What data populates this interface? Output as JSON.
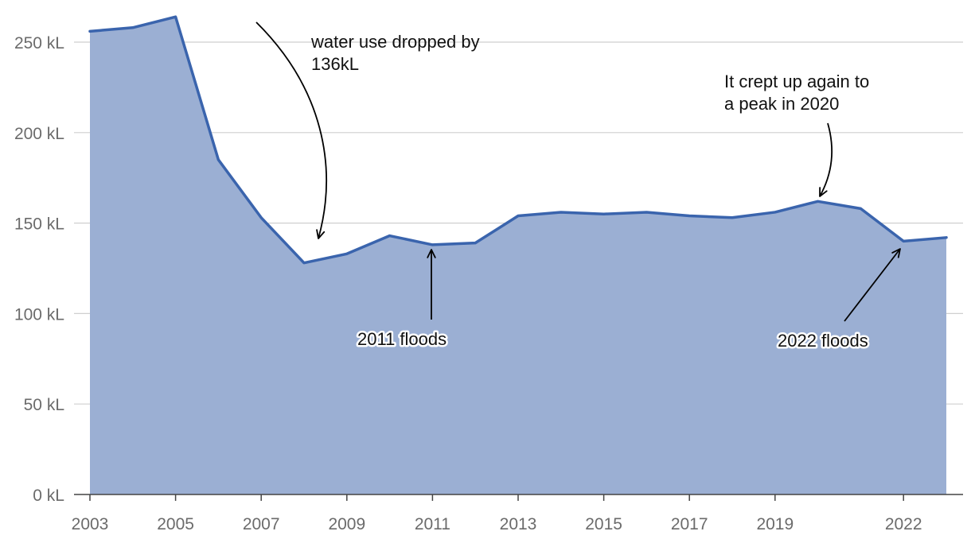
{
  "colors": {
    "line": "#3a64ad",
    "area": "#9bafd3",
    "grid": "#cfcfcf",
    "axis": "#444444",
    "tick_text": "#6b6b6b",
    "annotation_text": "#111111"
  },
  "chart_data": {
    "type": "area",
    "title": "",
    "xlabel": "",
    "ylabel": "",
    "unit": "kL",
    "ylim": [
      0,
      250
    ],
    "y_ticks": [
      0,
      50,
      100,
      150,
      200,
      250
    ],
    "y_tick_labels": [
      "0 kL",
      "50 kL",
      "100 kL",
      "150 kL",
      "200 kL",
      "250 kL"
    ],
    "x_ticks": [
      2003,
      2005,
      2007,
      2009,
      2011,
      2013,
      2015,
      2017,
      2019,
      2022
    ],
    "x_tick_labels": [
      "2003",
      "2005",
      "2007",
      "2009",
      "2011",
      "2013",
      "2015",
      "2017",
      "2019",
      "2022"
    ],
    "grid": true,
    "legend": "none",
    "series": [
      {
        "x": [
          2003,
          2004,
          2005,
          2006,
          2007,
          2008,
          2009,
          2010,
          2011,
          2012,
          2013,
          2014,
          2015,
          2016,
          2017,
          2018,
          2019,
          2020,
          2021,
          2022,
          2023
        ],
        "values": [
          256,
          258,
          264,
          185,
          153,
          128,
          133,
          143,
          138,
          139,
          154,
          156,
          155,
          156,
          154,
          153,
          156,
          162,
          158,
          140,
          142
        ]
      }
    ],
    "annotations": [
      {
        "id": "drop",
        "lines": [
          "water use dropped by",
          "136kL"
        ]
      },
      {
        "id": "peak",
        "lines": [
          "It crept up again to",
          "a peak in 2020"
        ]
      },
      {
        "id": "floods2011",
        "lines": [
          "2011 floods"
        ]
      },
      {
        "id": "floods2022",
        "lines": [
          "2022 floods"
        ]
      }
    ]
  }
}
